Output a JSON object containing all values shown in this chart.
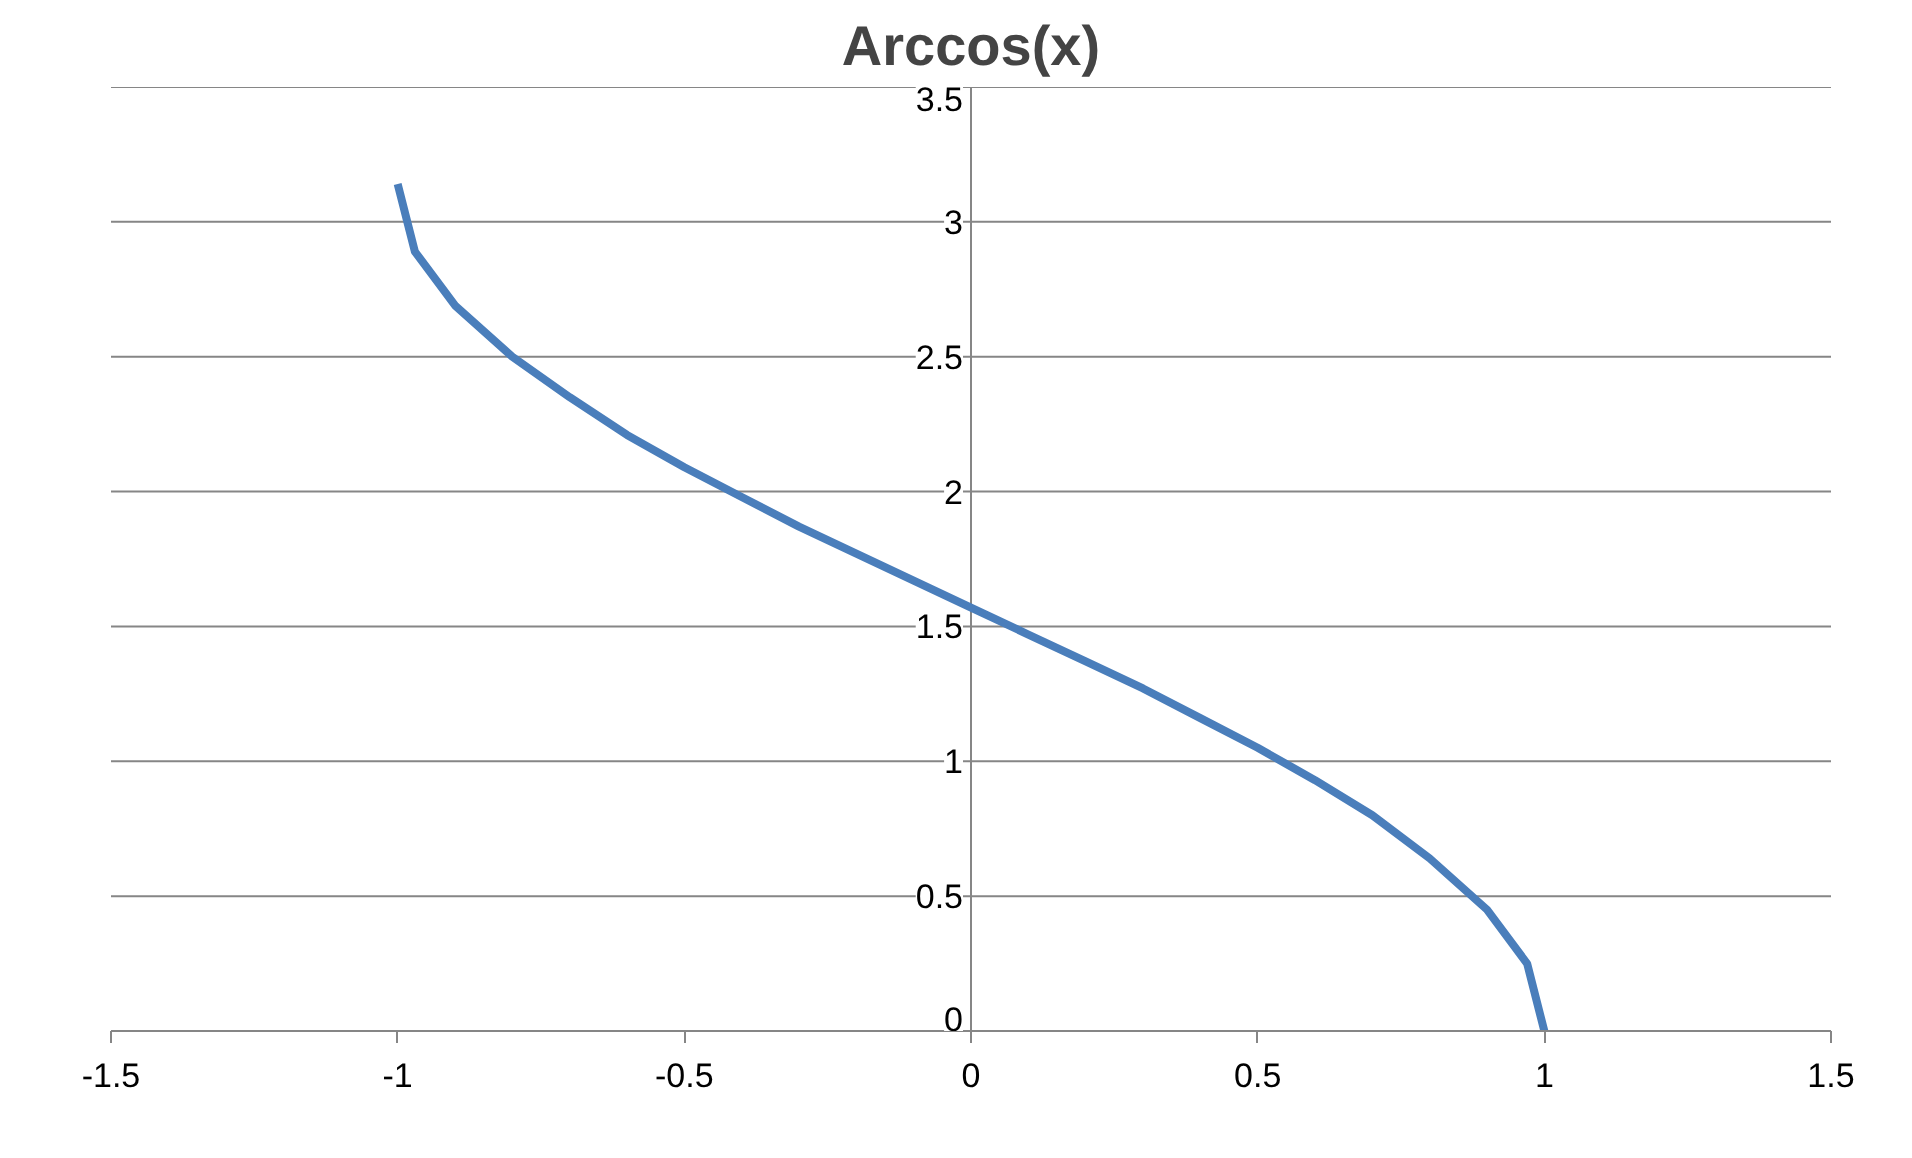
{
  "chart_data": {
    "type": "line",
    "title": "Arccos(x)",
    "x": [
      -1,
      -0.97,
      -0.9,
      -0.8,
      -0.7,
      -0.6,
      -0.5,
      -0.4,
      -0.3,
      -0.2,
      -0.1,
      0,
      0.1,
      0.2,
      0.3,
      0.4,
      0.5,
      0.6,
      0.7,
      0.8,
      0.9,
      0.97,
      1
    ],
    "series": [
      {
        "color": "#4a7ebb",
        "values": [
          3.14,
          2.89,
          2.69,
          2.5,
          2.35,
          2.21,
          2.09,
          1.98,
          1.87,
          1.77,
          1.67,
          1.57,
          1.47,
          1.37,
          1.27,
          1.16,
          1.05,
          0.93,
          0.8,
          0.64,
          0.45,
          0.25,
          0
        ]
      }
    ],
    "xlim": [
      -1.5,
      1.5
    ],
    "xticks": [
      -1.5,
      -1,
      -0.5,
      0,
      0.5,
      1,
      1.5
    ],
    "ylim": [
      0,
      3.5
    ],
    "yticks": [
      0,
      0.5,
      1,
      1.5,
      2,
      2.5,
      3,
      3.5
    ],
    "grid": "y",
    "marker": "none",
    "line_style": "solid"
  }
}
